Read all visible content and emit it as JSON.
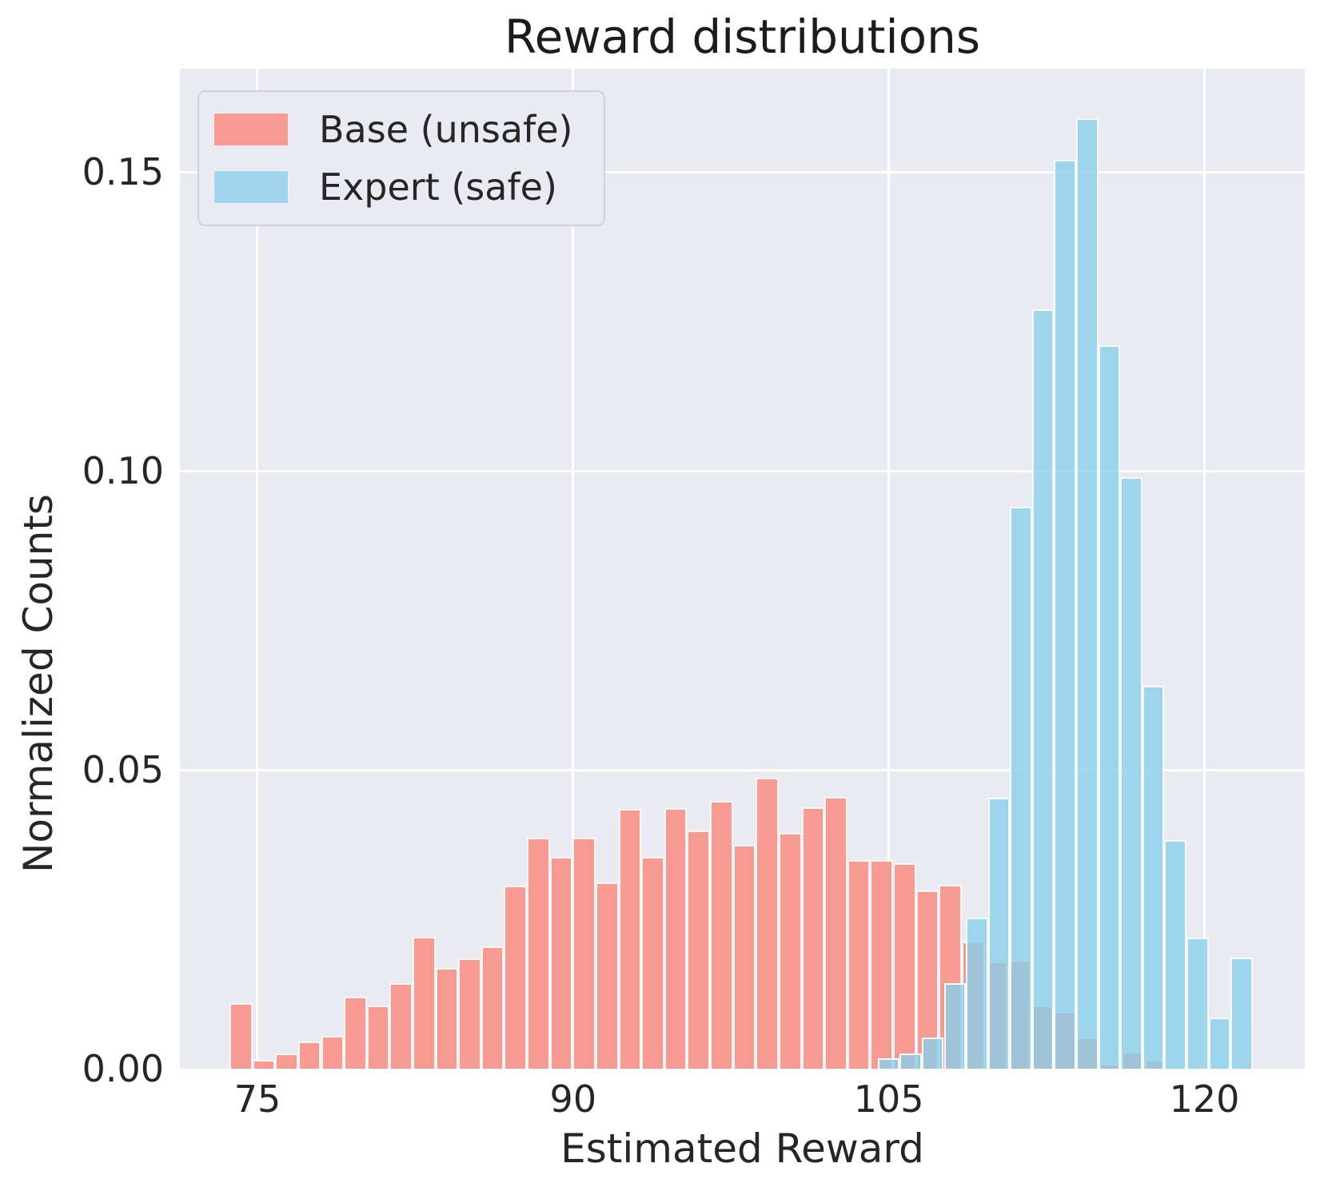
{
  "title": "Reward distributions",
  "axes": {
    "xlabel": "Estimated Reward",
    "ylabel": "Normalized Counts",
    "x_ticks": [
      {
        "v": 75,
        "label": "75"
      },
      {
        "v": 90,
        "label": "90"
      },
      {
        "v": 105,
        "label": "105"
      },
      {
        "v": 120,
        "label": "120"
      }
    ],
    "y_ticks": [
      {
        "v": 0.0,
        "label": "0.00"
      },
      {
        "v": 0.05,
        "label": "0.05"
      },
      {
        "v": 0.1,
        "label": "0.10"
      },
      {
        "v": 0.15,
        "label": "0.15"
      }
    ]
  },
  "legend": {
    "items": [
      {
        "label": "Base (unsafe)",
        "color": "#f69a92"
      },
      {
        "label": "Expert (safe)",
        "color": "#a0d5ed"
      }
    ]
  },
  "colors": {
    "plot_background": "#eaeaf2",
    "grid": "#ffffff",
    "text": "#262626",
    "base_series": "#f69a92",
    "expert_series": "#a0d5ed"
  },
  "chart_data": {
    "type": "bar",
    "subtype": "histogram",
    "title": "Reward distributions",
    "xlabel": "Estimated Reward",
    "ylabel": "Normalized Counts",
    "xlim": [
      71.315,
      124.767
    ],
    "ylim": [
      0,
      0.16725
    ],
    "grid": true,
    "legend_position": "upper left",
    "series": [
      {
        "name": "Base (unsafe)",
        "fill": "rgb(246,154,146)",
        "bin_start": 73.671,
        "bin_width": 1.0874,
        "values": [
          0.011,
          0.0015,
          0.0026,
          0.0046,
          0.0055,
          0.0121,
          0.0106,
          0.0143,
          0.022,
          0.0168,
          0.0184,
          0.0204,
          0.0306,
          0.0386,
          0.0354,
          0.0386,
          0.0312,
          0.0434,
          0.0354,
          0.0436,
          0.0398,
          0.0448,
          0.0375,
          0.0487,
          0.0394,
          0.0437,
          0.0454,
          0.0349,
          0.0349,
          0.0343,
          0.0298,
          0.0308,
          0.0213,
          0.0179,
          0.0182,
          0.0106,
          0.0095,
          0.0052,
          0.0008,
          0.0028,
          0.0015
        ]
      },
      {
        "name": "Expert (safe)",
        "fill": "rgba(135,206,235,0.78)",
        "bin_start": 104.47,
        "bin_width": 1.0482,
        "values": [
          0.0018,
          0.0026,
          0.0052,
          0.0143,
          0.0253,
          0.0453,
          0.094,
          0.127,
          0.152,
          0.159,
          0.121,
          0.099,
          0.064,
          0.0382,
          0.0219,
          0.0086,
          0.0186
        ]
      }
    ]
  }
}
